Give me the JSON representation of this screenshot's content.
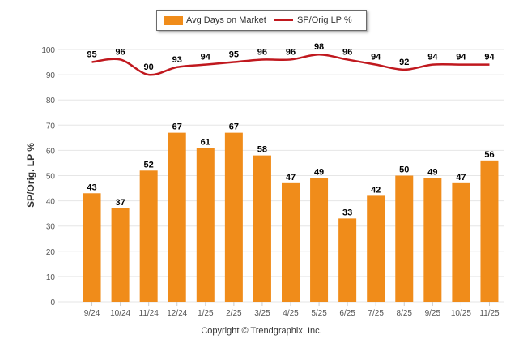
{
  "legend": {
    "bar_label": "Avg Days on Market",
    "line_label": "SP/Orig LP %"
  },
  "copyright": "Copyright © Trendgraphix, Inc.",
  "colors": {
    "bar": "#f08c1a",
    "line": "#c0181e",
    "grid": "#e6e6e6",
    "axis_text": "#555555",
    "label_text": "#000000"
  },
  "chart_data": {
    "type": "bar",
    "title": "",
    "xlabel": "",
    "ylabel": "SP/Orig. LP %",
    "ylim": [
      0,
      100
    ],
    "yticks": [
      0,
      10,
      20,
      30,
      40,
      50,
      60,
      70,
      80,
      90,
      100
    ],
    "grid": true,
    "legend_position": "top-center",
    "categories": [
      "9/24",
      "10/24",
      "11/24",
      "12/24",
      "1/25",
      "2/25",
      "3/25",
      "4/25",
      "5/25",
      "6/25",
      "7/25",
      "8/25",
      "9/25",
      "10/25",
      "11/25"
    ],
    "series": [
      {
        "name": "Avg Days on Market",
        "type": "bar",
        "values": [
          43,
          37,
          52,
          67,
          61,
          67,
          58,
          47,
          49,
          33,
          42,
          50,
          49,
          47,
          56
        ]
      },
      {
        "name": "SP/Orig LP %",
        "type": "line",
        "values": [
          95,
          96,
          90,
          93,
          94,
          95,
          96,
          96,
          98,
          96,
          94,
          92,
          94,
          94,
          94
        ]
      }
    ]
  }
}
